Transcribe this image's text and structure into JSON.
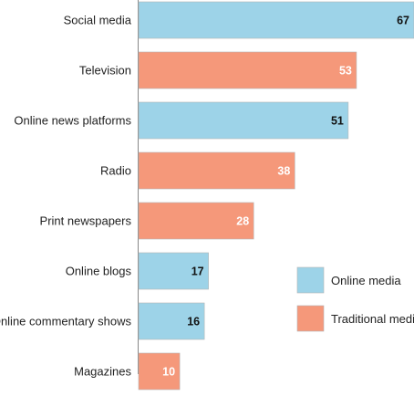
{
  "chart_data": {
    "type": "bar",
    "orientation": "horizontal",
    "categories": [
      "Social media",
      "Television",
      "Online news platforms",
      "Radio",
      "Print newspapers",
      "Online blogs",
      "Online commentary shows",
      "Magazines"
    ],
    "values": [
      67,
      53,
      51,
      38,
      28,
      17,
      16,
      10
    ],
    "groups": [
      "Online media",
      "Traditional media",
      "Online media",
      "Traditional media",
      "Traditional media",
      "Online media",
      "Online media",
      "Traditional media"
    ],
    "legend": [
      {
        "name": "Online media",
        "color": "#9dd3e8"
      },
      {
        "name": "Traditional media",
        "color": "#f5987a"
      }
    ],
    "value_label_colors": {
      "Online media": "#111111",
      "Traditional media": "#ffffff"
    },
    "legend_position": "right",
    "xlim": [
      0,
      67
    ],
    "grid": false,
    "title": "",
    "xlabel": "",
    "ylabel": ""
  }
}
